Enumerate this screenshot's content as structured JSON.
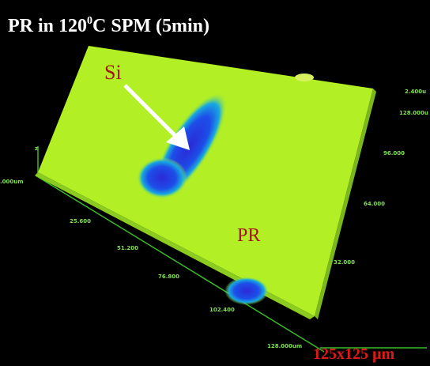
{
  "title": {
    "prefix": "PR in 120",
    "superscript": "0",
    "suffix": "C SPM (5min)"
  },
  "labels": {
    "si": "Si",
    "pr": "PR",
    "scale": "125x125 µm"
  },
  "x_axis_ticks": [
    ".000um",
    "25.600",
    "51.200",
    "76.800",
    "102.400",
    "128.000um"
  ],
  "y_axis_ticks": [
    "32.000",
    "64.000",
    "96.000",
    "128.000u"
  ],
  "z_axis": {
    "top": "2.400u",
    "name": "z"
  }
}
